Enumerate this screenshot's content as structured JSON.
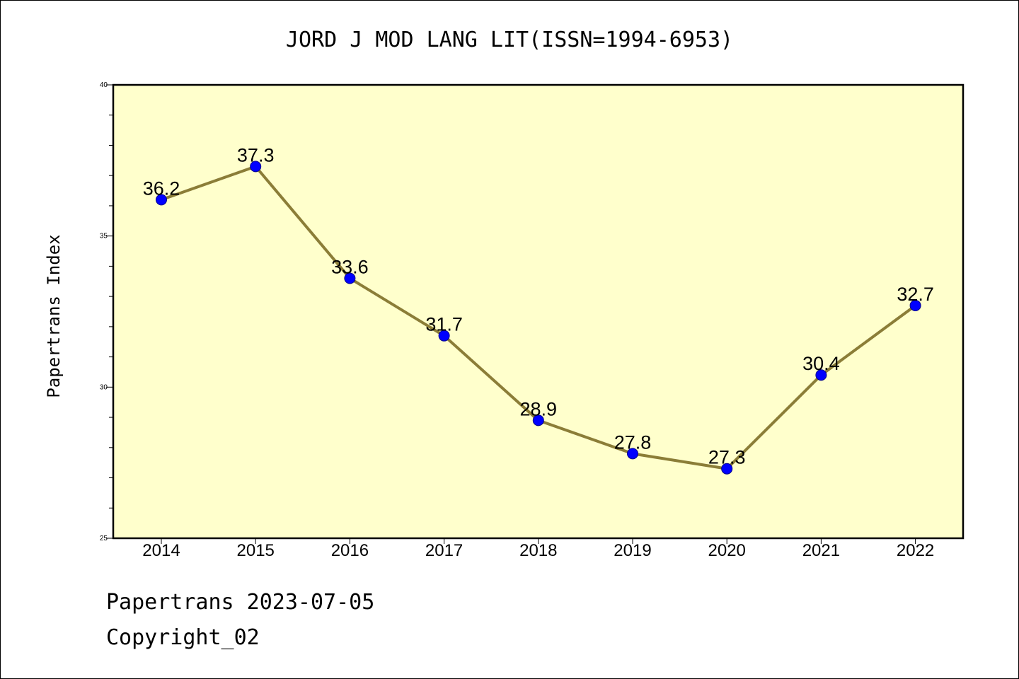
{
  "chart_data": {
    "type": "line",
    "title": "JORD J MOD LANG LIT(ISSN=1994-6953)",
    "xlabel": "",
    "ylabel": "Papertrans Index",
    "categories": [
      "2014",
      "2015",
      "2016",
      "2017",
      "2018",
      "2019",
      "2020",
      "2021",
      "2022"
    ],
    "series": [
      {
        "values": [
          36.2,
          37.3,
          33.6,
          31.7,
          28.9,
          27.8,
          27.3,
          30.4,
          32.7
        ],
        "data_labels": [
          "36.2",
          "37.3",
          "33.6",
          "31.7",
          "28.9",
          "27.8",
          "27.3",
          "30.4",
          "32.7"
        ]
      }
    ],
    "ylim": [
      25,
      40
    ],
    "yticks": [
      25,
      30,
      35,
      40
    ],
    "yminor_step": 1,
    "grid": false,
    "legend": "none",
    "colors": {
      "plot_background": "#ffffcc",
      "line": "#8b7d37",
      "marker": "#0000ff"
    }
  },
  "footer": {
    "line1": "Papertrans 2023-07-05",
    "line2": "Copyright_02"
  }
}
